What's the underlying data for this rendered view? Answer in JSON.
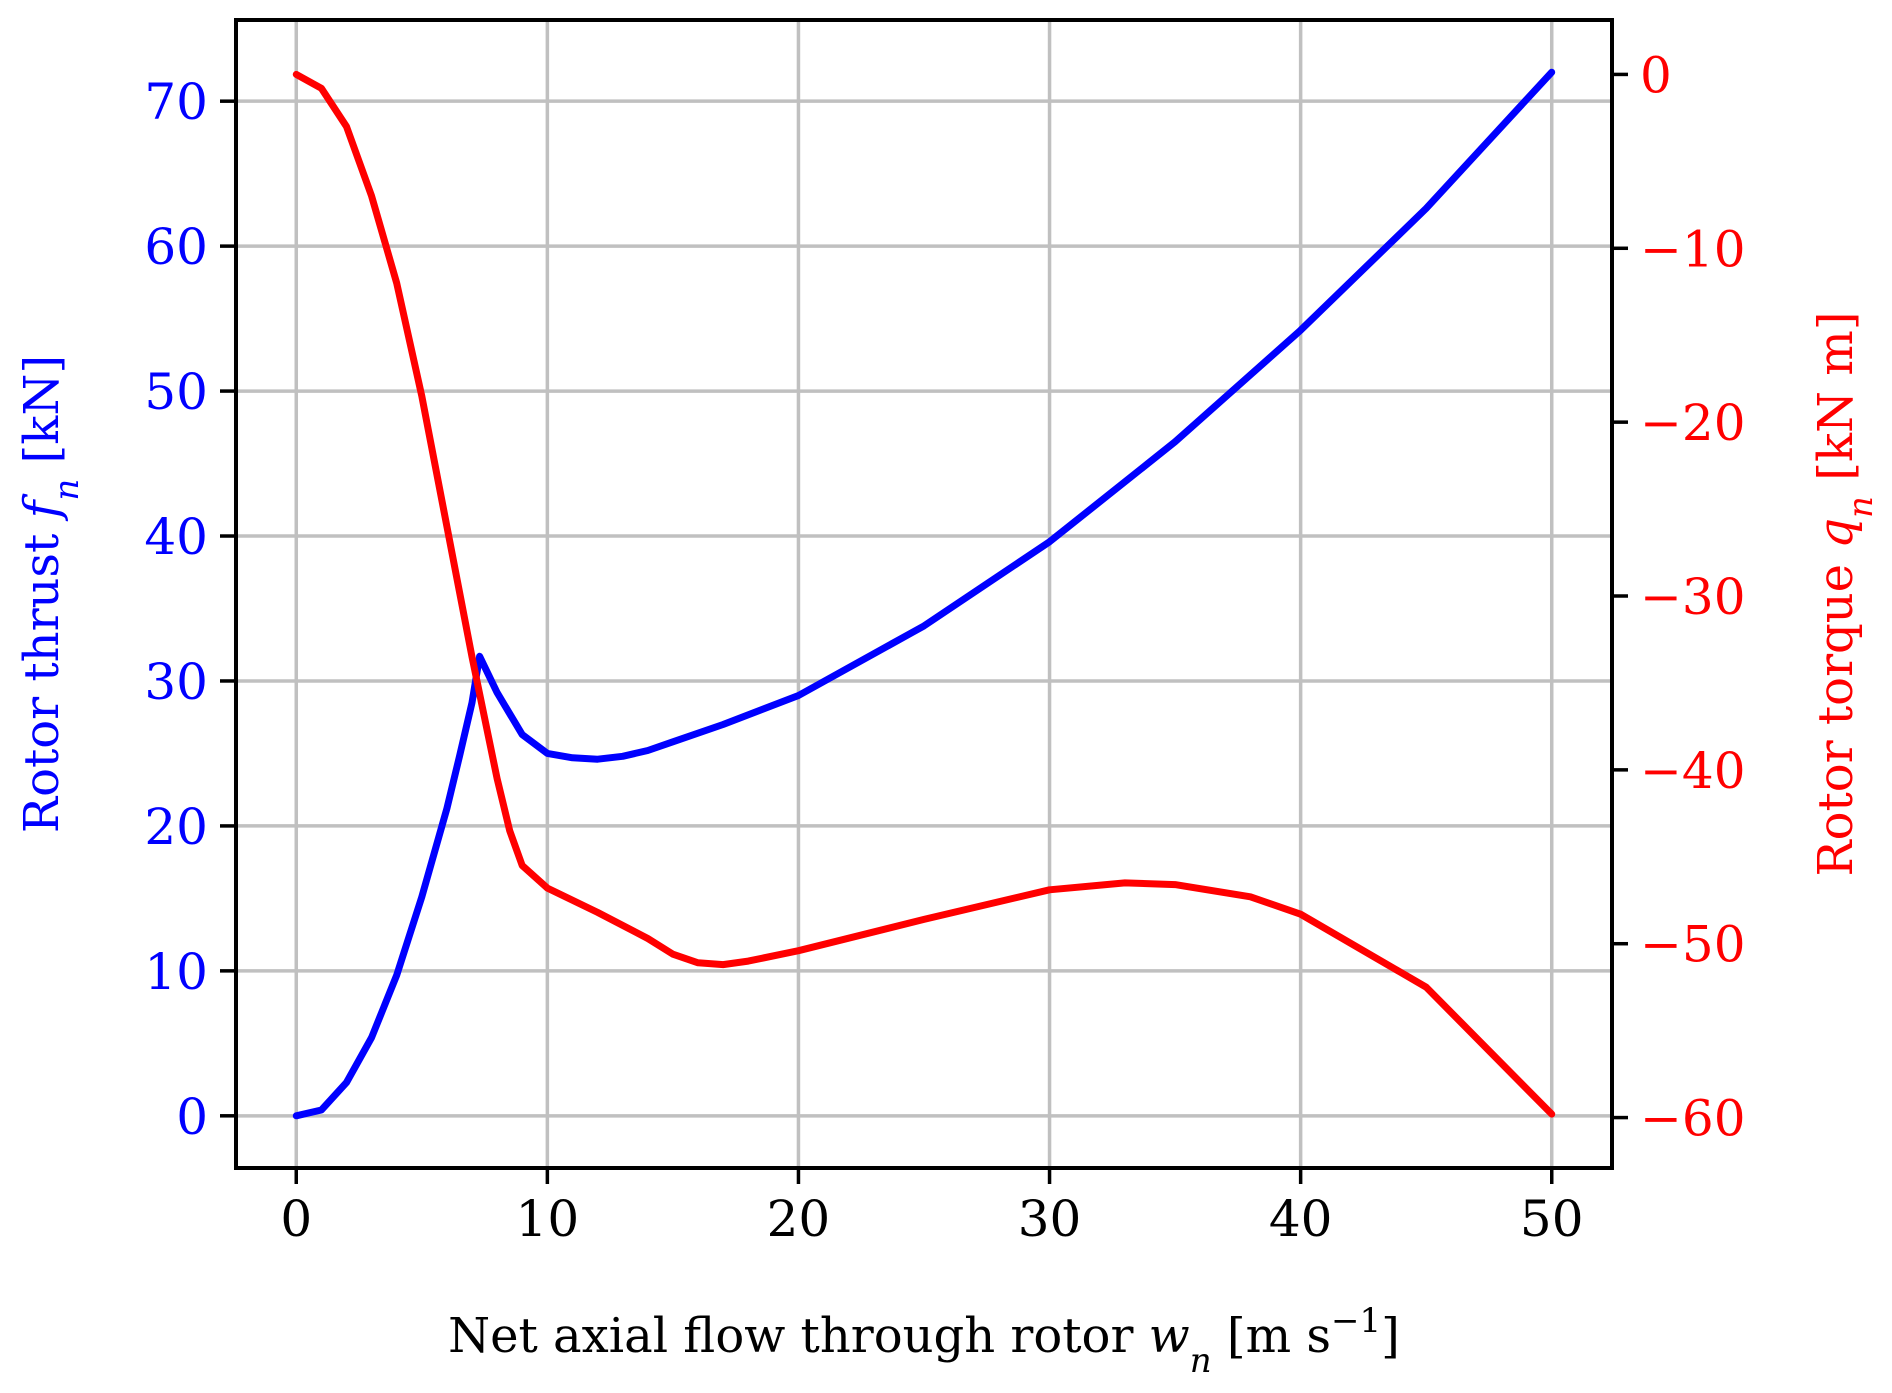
{
  "colors": {
    "thrust": "#0000ff",
    "torque": "#ff0000",
    "grid": "#c0c0c0",
    "axes": "#000000"
  },
  "chart_data": {
    "type": "line",
    "grid": true,
    "xlabel": {
      "text": "Net axial flow through rotor ",
      "var": "w",
      "sub": "n",
      "unit_open": " [m s",
      "sup": "−1",
      "unit_close": "]"
    },
    "ylabel_left": {
      "text": "Rotor thrust ",
      "var": "f",
      "sub": "n",
      "unit": " [kN]"
    },
    "ylabel_right": {
      "text": "Rotor torque ",
      "var": "q",
      "sub": "n",
      "unit": " [kN m]"
    },
    "xlim": [
      -2.4,
      52.4
    ],
    "ylim_left": [
      -3.6,
      75.6
    ],
    "ylim_right": [
      -62.9,
      3.13
    ],
    "x_ticks": [
      0,
      10,
      20,
      30,
      40,
      50
    ],
    "x_tick_labels": [
      "0",
      "10",
      "20",
      "30",
      "40",
      "50"
    ],
    "y_left_ticks": [
      0,
      10,
      20,
      30,
      40,
      50,
      60,
      70
    ],
    "y_left_tick_labels": [
      "0",
      "10",
      "20",
      "30",
      "40",
      "50",
      "60",
      "70"
    ],
    "y_right_ticks": [
      0,
      -10,
      -20,
      -30,
      -40,
      -50,
      -60
    ],
    "y_right_tick_labels": [
      "0",
      "−10",
      "−20",
      "−30",
      "−40",
      "−50",
      "−60"
    ],
    "series": [
      {
        "axis": "left",
        "color": "#0000ff",
        "points": [
          [
            0,
            0
          ],
          [
            1,
            0.4
          ],
          [
            2,
            2.3
          ],
          [
            3,
            5.4
          ],
          [
            4,
            9.7
          ],
          [
            5,
            15.1
          ],
          [
            6,
            21.2
          ],
          [
            6.5,
            24.8
          ],
          [
            7,
            28.5
          ],
          [
            7.3,
            31.7
          ],
          [
            8,
            29.2
          ],
          [
            9,
            26.3
          ],
          [
            10,
            25.0
          ],
          [
            11,
            24.7
          ],
          [
            12,
            24.6
          ],
          [
            13,
            24.8
          ],
          [
            14,
            25.2
          ],
          [
            15,
            25.8
          ],
          [
            17,
            27.0
          ],
          [
            20,
            29.0
          ],
          [
            25,
            33.8
          ],
          [
            30,
            39.6
          ],
          [
            35,
            46.5
          ],
          [
            40,
            54.2
          ],
          [
            45,
            62.6
          ],
          [
            50,
            72.0
          ]
        ]
      },
      {
        "axis": "right",
        "color": "#ff0000",
        "points": [
          [
            0,
            0
          ],
          [
            1,
            -0.8
          ],
          [
            2,
            -3.0
          ],
          [
            3,
            -7.0
          ],
          [
            4,
            -12.0
          ],
          [
            5,
            -18.5
          ],
          [
            6,
            -26.0
          ],
          [
            7,
            -33.5
          ],
          [
            8,
            -40.5
          ],
          [
            8.5,
            -43.5
          ],
          [
            9,
            -45.5
          ],
          [
            10,
            -46.8
          ],
          [
            12,
            -48.2
          ],
          [
            14,
            -49.7
          ],
          [
            15,
            -50.6
          ],
          [
            16,
            -51.1
          ],
          [
            17,
            -51.2
          ],
          [
            18,
            -51.0
          ],
          [
            20,
            -50.4
          ],
          [
            25,
            -48.6
          ],
          [
            30,
            -46.9
          ],
          [
            33,
            -46.5
          ],
          [
            35,
            -46.6
          ],
          [
            38,
            -47.3
          ],
          [
            40,
            -48.3
          ],
          [
            45,
            -52.5
          ],
          [
            50,
            -59.8
          ]
        ]
      }
    ]
  }
}
